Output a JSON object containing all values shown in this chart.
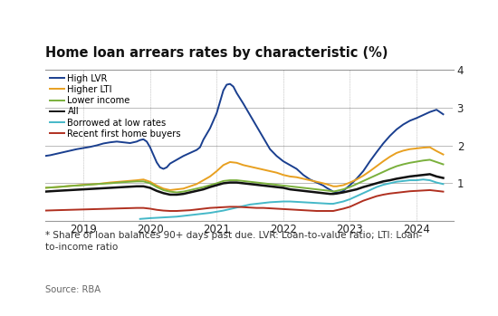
{
  "title": "Home loan arrears rates by characteristic (%)",
  "footnote": "* Share of loan balances 90+ days past due. LVR: Loan-to-value ratio; LTI: Loan-\nto-income ratio",
  "source": "Source: RBA",
  "ylim": [
    0,
    4
  ],
  "yticks": [
    1,
    2,
    3,
    4
  ],
  "background_color": "#ffffff",
  "series": {
    "High LVR": {
      "color": "#1a3f8f",
      "linewidth": 1.4,
      "data": [
        [
          2018.42,
          1.72
        ],
        [
          2018.5,
          1.74
        ],
        [
          2018.6,
          1.78
        ],
        [
          2018.7,
          1.82
        ],
        [
          2018.8,
          1.86
        ],
        [
          2018.9,
          1.9
        ],
        [
          2019.0,
          1.93
        ],
        [
          2019.1,
          1.96
        ],
        [
          2019.2,
          2.0
        ],
        [
          2019.3,
          2.05
        ],
        [
          2019.4,
          2.08
        ],
        [
          2019.5,
          2.1
        ],
        [
          2019.6,
          2.08
        ],
        [
          2019.7,
          2.06
        ],
        [
          2019.75,
          2.08
        ],
        [
          2019.8,
          2.1
        ],
        [
          2019.85,
          2.14
        ],
        [
          2019.9,
          2.16
        ],
        [
          2019.95,
          2.1
        ],
        [
          2020.0,
          1.95
        ],
        [
          2020.05,
          1.75
        ],
        [
          2020.1,
          1.55
        ],
        [
          2020.15,
          1.42
        ],
        [
          2020.2,
          1.38
        ],
        [
          2020.25,
          1.42
        ],
        [
          2020.3,
          1.52
        ],
        [
          2020.4,
          1.62
        ],
        [
          2020.5,
          1.72
        ],
        [
          2020.6,
          1.8
        ],
        [
          2020.7,
          1.88
        ],
        [
          2020.75,
          1.95
        ],
        [
          2020.8,
          2.15
        ],
        [
          2020.9,
          2.45
        ],
        [
          2021.0,
          2.85
        ],
        [
          2021.05,
          3.15
        ],
        [
          2021.1,
          3.45
        ],
        [
          2021.15,
          3.6
        ],
        [
          2021.2,
          3.62
        ],
        [
          2021.25,
          3.55
        ],
        [
          2021.3,
          3.38
        ],
        [
          2021.4,
          3.1
        ],
        [
          2021.5,
          2.8
        ],
        [
          2021.6,
          2.5
        ],
        [
          2021.7,
          2.2
        ],
        [
          2021.75,
          2.05
        ],
        [
          2021.8,
          1.9
        ],
        [
          2021.9,
          1.72
        ],
        [
          2022.0,
          1.58
        ],
        [
          2022.1,
          1.48
        ],
        [
          2022.2,
          1.38
        ],
        [
          2022.3,
          1.22
        ],
        [
          2022.4,
          1.1
        ],
        [
          2022.5,
          1.02
        ],
        [
          2022.6,
          0.94
        ],
        [
          2022.65,
          0.88
        ],
        [
          2022.7,
          0.83
        ],
        [
          2022.75,
          0.78
        ],
        [
          2022.8,
          0.76
        ],
        [
          2022.85,
          0.76
        ],
        [
          2022.9,
          0.8
        ],
        [
          2023.0,
          0.95
        ],
        [
          2023.1,
          1.12
        ],
        [
          2023.2,
          1.32
        ],
        [
          2023.3,
          1.58
        ],
        [
          2023.4,
          1.82
        ],
        [
          2023.5,
          2.05
        ],
        [
          2023.6,
          2.25
        ],
        [
          2023.7,
          2.42
        ],
        [
          2023.8,
          2.55
        ],
        [
          2023.9,
          2.65
        ],
        [
          2024.0,
          2.72
        ],
        [
          2024.1,
          2.8
        ],
        [
          2024.2,
          2.88
        ],
        [
          2024.3,
          2.94
        ],
        [
          2024.4,
          2.82
        ]
      ]
    },
    "Higher LTI": {
      "color": "#e8a020",
      "linewidth": 1.4,
      "data": [
        [
          2018.42,
          0.88
        ],
        [
          2018.6,
          0.9
        ],
        [
          2018.8,
          0.93
        ],
        [
          2019.0,
          0.96
        ],
        [
          2019.2,
          0.98
        ],
        [
          2019.4,
          1.02
        ],
        [
          2019.6,
          1.05
        ],
        [
          2019.8,
          1.08
        ],
        [
          2019.9,
          1.1
        ],
        [
          2020.0,
          1.04
        ],
        [
          2020.1,
          0.94
        ],
        [
          2020.2,
          0.86
        ],
        [
          2020.3,
          0.82
        ],
        [
          2020.5,
          0.86
        ],
        [
          2020.7,
          0.98
        ],
        [
          2020.8,
          1.08
        ],
        [
          2020.9,
          1.18
        ],
        [
          2021.0,
          1.32
        ],
        [
          2021.1,
          1.48
        ],
        [
          2021.2,
          1.56
        ],
        [
          2021.3,
          1.54
        ],
        [
          2021.4,
          1.48
        ],
        [
          2021.5,
          1.44
        ],
        [
          2021.6,
          1.4
        ],
        [
          2021.7,
          1.36
        ],
        [
          2021.8,
          1.32
        ],
        [
          2021.9,
          1.28
        ],
        [
          2022.0,
          1.22
        ],
        [
          2022.1,
          1.18
        ],
        [
          2022.2,
          1.16
        ],
        [
          2022.3,
          1.12
        ],
        [
          2022.4,
          1.08
        ],
        [
          2022.5,
          1.04
        ],
        [
          2022.6,
          1.0
        ],
        [
          2022.7,
          0.95
        ],
        [
          2022.75,
          0.92
        ],
        [
          2022.8,
          0.92
        ],
        [
          2022.9,
          0.95
        ],
        [
          2023.0,
          1.02
        ],
        [
          2023.1,
          1.1
        ],
        [
          2023.2,
          1.2
        ],
        [
          2023.3,
          1.32
        ],
        [
          2023.4,
          1.45
        ],
        [
          2023.5,
          1.58
        ],
        [
          2023.6,
          1.7
        ],
        [
          2023.7,
          1.8
        ],
        [
          2023.8,
          1.86
        ],
        [
          2023.9,
          1.9
        ],
        [
          2024.0,
          1.92
        ],
        [
          2024.1,
          1.94
        ],
        [
          2024.2,
          1.95
        ],
        [
          2024.3,
          1.85
        ],
        [
          2024.4,
          1.76
        ]
      ]
    },
    "Lower income": {
      "color": "#7ab03c",
      "linewidth": 1.4,
      "data": [
        [
          2018.42,
          0.88
        ],
        [
          2018.6,
          0.9
        ],
        [
          2018.8,
          0.93
        ],
        [
          2019.0,
          0.95
        ],
        [
          2019.2,
          0.98
        ],
        [
          2019.4,
          1.0
        ],
        [
          2019.6,
          1.03
        ],
        [
          2019.8,
          1.05
        ],
        [
          2019.9,
          1.05
        ],
        [
          2020.0,
          1.0
        ],
        [
          2020.1,
          0.9
        ],
        [
          2020.2,
          0.82
        ],
        [
          2020.3,
          0.78
        ],
        [
          2020.4,
          0.76
        ],
        [
          2020.5,
          0.78
        ],
        [
          2020.6,
          0.82
        ],
        [
          2020.7,
          0.86
        ],
        [
          2020.8,
          0.9
        ],
        [
          2020.9,
          0.95
        ],
        [
          2021.0,
          1.0
        ],
        [
          2021.1,
          1.06
        ],
        [
          2021.2,
          1.08
        ],
        [
          2021.3,
          1.08
        ],
        [
          2021.4,
          1.06
        ],
        [
          2021.5,
          1.04
        ],
        [
          2021.6,
          1.02
        ],
        [
          2021.7,
          1.0
        ],
        [
          2021.8,
          0.98
        ],
        [
          2021.9,
          0.96
        ],
        [
          2022.0,
          0.94
        ],
        [
          2022.1,
          0.92
        ],
        [
          2022.2,
          0.9
        ],
        [
          2022.3,
          0.88
        ],
        [
          2022.4,
          0.86
        ],
        [
          2022.5,
          0.84
        ],
        [
          2022.6,
          0.82
        ],
        [
          2022.7,
          0.8
        ],
        [
          2022.75,
          0.78
        ],
        [
          2022.8,
          0.8
        ],
        [
          2022.9,
          0.84
        ],
        [
          2023.0,
          0.9
        ],
        [
          2023.1,
          0.98
        ],
        [
          2023.2,
          1.06
        ],
        [
          2023.3,
          1.14
        ],
        [
          2023.4,
          1.22
        ],
        [
          2023.5,
          1.3
        ],
        [
          2023.6,
          1.38
        ],
        [
          2023.7,
          1.45
        ],
        [
          2023.8,
          1.5
        ],
        [
          2023.9,
          1.54
        ],
        [
          2024.0,
          1.57
        ],
        [
          2024.1,
          1.6
        ],
        [
          2024.2,
          1.62
        ],
        [
          2024.3,
          1.56
        ],
        [
          2024.4,
          1.5
        ]
      ]
    },
    "All": {
      "color": "#111111",
      "linewidth": 1.8,
      "data": [
        [
          2018.42,
          0.78
        ],
        [
          2018.6,
          0.8
        ],
        [
          2018.8,
          0.82
        ],
        [
          2019.0,
          0.84
        ],
        [
          2019.2,
          0.86
        ],
        [
          2019.4,
          0.88
        ],
        [
          2019.6,
          0.9
        ],
        [
          2019.8,
          0.92
        ],
        [
          2019.9,
          0.92
        ],
        [
          2020.0,
          0.88
        ],
        [
          2020.1,
          0.8
        ],
        [
          2020.2,
          0.74
        ],
        [
          2020.3,
          0.7
        ],
        [
          2020.4,
          0.7
        ],
        [
          2020.5,
          0.72
        ],
        [
          2020.6,
          0.76
        ],
        [
          2020.7,
          0.8
        ],
        [
          2020.8,
          0.84
        ],
        [
          2020.9,
          0.9
        ],
        [
          2021.0,
          0.95
        ],
        [
          2021.1,
          1.0
        ],
        [
          2021.2,
          1.02
        ],
        [
          2021.3,
          1.02
        ],
        [
          2021.4,
          1.0
        ],
        [
          2021.5,
          0.98
        ],
        [
          2021.6,
          0.96
        ],
        [
          2021.7,
          0.94
        ],
        [
          2021.8,
          0.92
        ],
        [
          2021.9,
          0.9
        ],
        [
          2022.0,
          0.88
        ],
        [
          2022.1,
          0.84
        ],
        [
          2022.2,
          0.82
        ],
        [
          2022.3,
          0.8
        ],
        [
          2022.4,
          0.78
        ],
        [
          2022.5,
          0.76
        ],
        [
          2022.6,
          0.74
        ],
        [
          2022.7,
          0.72
        ],
        [
          2022.75,
          0.72
        ],
        [
          2022.8,
          0.73
        ],
        [
          2022.9,
          0.76
        ],
        [
          2023.0,
          0.8
        ],
        [
          2023.1,
          0.84
        ],
        [
          2023.2,
          0.9
        ],
        [
          2023.3,
          0.95
        ],
        [
          2023.4,
          1.0
        ],
        [
          2023.5,
          1.05
        ],
        [
          2023.6,
          1.08
        ],
        [
          2023.7,
          1.12
        ],
        [
          2023.8,
          1.15
        ],
        [
          2023.9,
          1.18
        ],
        [
          2024.0,
          1.2
        ],
        [
          2024.1,
          1.22
        ],
        [
          2024.2,
          1.24
        ],
        [
          2024.3,
          1.18
        ],
        [
          2024.4,
          1.14
        ]
      ]
    },
    "Borrowed at low rates": {
      "color": "#45b8c8",
      "linewidth": 1.4,
      "data": [
        [
          2019.85,
          0.06
        ],
        [
          2020.0,
          0.08
        ],
        [
          2020.1,
          0.09
        ],
        [
          2020.2,
          0.1
        ],
        [
          2020.3,
          0.11
        ],
        [
          2020.4,
          0.12
        ],
        [
          2020.5,
          0.14
        ],
        [
          2020.6,
          0.16
        ],
        [
          2020.7,
          0.18
        ],
        [
          2020.8,
          0.2
        ],
        [
          2020.9,
          0.22
        ],
        [
          2021.0,
          0.25
        ],
        [
          2021.1,
          0.28
        ],
        [
          2021.2,
          0.32
        ],
        [
          2021.3,
          0.36
        ],
        [
          2021.4,
          0.4
        ],
        [
          2021.5,
          0.44
        ],
        [
          2021.6,
          0.46
        ],
        [
          2021.7,
          0.48
        ],
        [
          2021.8,
          0.5
        ],
        [
          2021.9,
          0.51
        ],
        [
          2022.0,
          0.52
        ],
        [
          2022.1,
          0.52
        ],
        [
          2022.2,
          0.51
        ],
        [
          2022.3,
          0.5
        ],
        [
          2022.4,
          0.49
        ],
        [
          2022.5,
          0.48
        ],
        [
          2022.6,
          0.47
        ],
        [
          2022.7,
          0.46
        ],
        [
          2022.75,
          0.46
        ],
        [
          2022.8,
          0.48
        ],
        [
          2022.9,
          0.52
        ],
        [
          2023.0,
          0.58
        ],
        [
          2023.1,
          0.66
        ],
        [
          2023.2,
          0.74
        ],
        [
          2023.3,
          0.82
        ],
        [
          2023.4,
          0.9
        ],
        [
          2023.5,
          0.96
        ],
        [
          2023.6,
          1.0
        ],
        [
          2023.7,
          1.04
        ],
        [
          2023.8,
          1.06
        ],
        [
          2023.9,
          1.08
        ],
        [
          2024.0,
          1.08
        ],
        [
          2024.1,
          1.1
        ],
        [
          2024.2,
          1.08
        ],
        [
          2024.3,
          1.02
        ],
        [
          2024.4,
          0.98
        ]
      ]
    },
    "Recent first home buyers": {
      "color": "#b03020",
      "linewidth": 1.4,
      "data": [
        [
          2018.42,
          0.28
        ],
        [
          2018.6,
          0.29
        ],
        [
          2018.8,
          0.3
        ],
        [
          2019.0,
          0.31
        ],
        [
          2019.2,
          0.32
        ],
        [
          2019.4,
          0.33
        ],
        [
          2019.6,
          0.34
        ],
        [
          2019.8,
          0.35
        ],
        [
          2019.9,
          0.35
        ],
        [
          2020.0,
          0.33
        ],
        [
          2020.1,
          0.3
        ],
        [
          2020.2,
          0.28
        ],
        [
          2020.3,
          0.27
        ],
        [
          2020.4,
          0.27
        ],
        [
          2020.5,
          0.28
        ],
        [
          2020.6,
          0.29
        ],
        [
          2020.7,
          0.31
        ],
        [
          2020.8,
          0.33
        ],
        [
          2020.9,
          0.35
        ],
        [
          2021.0,
          0.36
        ],
        [
          2021.1,
          0.37
        ],
        [
          2021.2,
          0.38
        ],
        [
          2021.3,
          0.38
        ],
        [
          2021.4,
          0.37
        ],
        [
          2021.5,
          0.36
        ],
        [
          2021.6,
          0.35
        ],
        [
          2021.7,
          0.35
        ],
        [
          2021.8,
          0.34
        ],
        [
          2021.9,
          0.33
        ],
        [
          2022.0,
          0.32
        ],
        [
          2022.1,
          0.31
        ],
        [
          2022.2,
          0.3
        ],
        [
          2022.3,
          0.29
        ],
        [
          2022.4,
          0.28
        ],
        [
          2022.5,
          0.27
        ],
        [
          2022.6,
          0.27
        ],
        [
          2022.7,
          0.27
        ],
        [
          2022.75,
          0.27
        ],
        [
          2022.8,
          0.29
        ],
        [
          2022.9,
          0.33
        ],
        [
          2023.0,
          0.38
        ],
        [
          2023.1,
          0.46
        ],
        [
          2023.2,
          0.54
        ],
        [
          2023.3,
          0.6
        ],
        [
          2023.4,
          0.66
        ],
        [
          2023.5,
          0.7
        ],
        [
          2023.6,
          0.73
        ],
        [
          2023.7,
          0.75
        ],
        [
          2023.8,
          0.77
        ],
        [
          2023.9,
          0.79
        ],
        [
          2024.0,
          0.8
        ],
        [
          2024.1,
          0.81
        ],
        [
          2024.2,
          0.82
        ],
        [
          2024.3,
          0.8
        ],
        [
          2024.4,
          0.78
        ]
      ]
    }
  },
  "legend_order": [
    "High LVR",
    "Higher LTI",
    "Lower income",
    "All",
    "Borrowed at low rates",
    "Recent first home buyers"
  ],
  "vlines": [
    2019.0,
    2020.0,
    2021.0,
    2022.0,
    2023.0,
    2024.0
  ],
  "xlim": [
    2018.42,
    2024.55
  ],
  "xtick_positions": [
    2019.0,
    2020.0,
    2021.0,
    2022.0,
    2023.0,
    2024.0
  ],
  "xtick_labels": [
    "2019",
    "2020",
    "2021",
    "2022",
    "2023",
    "2024"
  ],
  "hlines": [
    1,
    2,
    3,
    4
  ],
  "plot_bg": "#ffffff",
  "grid_color": "#cccccc"
}
